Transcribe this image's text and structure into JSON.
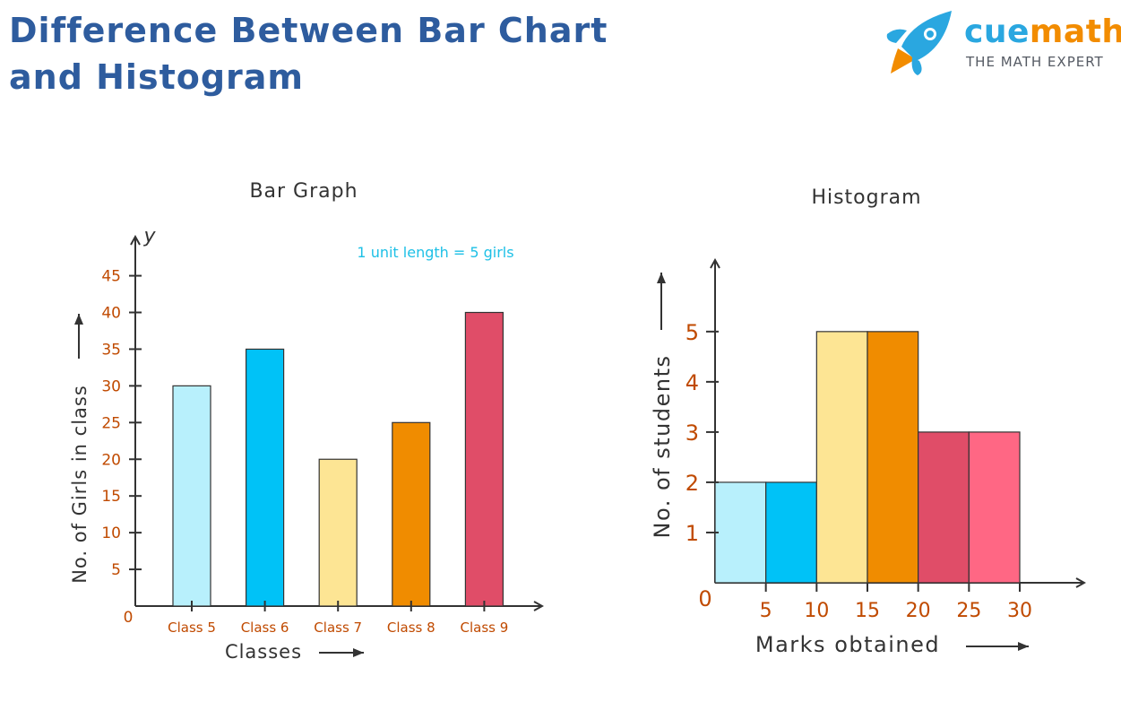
{
  "header": {
    "title_line1": "Difference Between Bar Chart",
    "title_line2": "and Histogram"
  },
  "brand": {
    "name_part1": "cue",
    "name_part2": "math",
    "tagline": "THE MATH EXPERT",
    "colors": {
      "primary": "#2aa7e0",
      "accent": "#f28c00"
    }
  },
  "colors": {
    "title": "#2e5c9e",
    "tick_label": "#c04a00",
    "axis_label": "#333333",
    "annotation": "#1ec0e6"
  },
  "chart_data": [
    {
      "type": "bar",
      "title": "Bar Graph",
      "y_axis_symbol": "y",
      "annotation": "1 unit length =  5 girls",
      "categories": [
        "Class 5",
        "Class 6",
        "Class 7",
        "Class 8",
        "Class 9"
      ],
      "values": [
        30,
        35,
        20,
        25,
        40
      ],
      "colors": [
        "#b8f0fc",
        "#00c2f7",
        "#fde594",
        "#f08c00",
        "#e04d68"
      ],
      "xlabel": "Classes",
      "ylabel": "No. of Girls in class",
      "origin_label": "0",
      "y_ticks": [
        5,
        10,
        15,
        20,
        25,
        30,
        35,
        40,
        45
      ],
      "ylim": [
        0,
        48
      ],
      "grid": false
    },
    {
      "type": "bar",
      "subtype": "histogram",
      "title": "Histogram",
      "bins": [
        [
          0,
          5
        ],
        [
          5,
          10
        ],
        [
          10,
          15
        ],
        [
          15,
          20
        ],
        [
          20,
          25
        ],
        [
          25,
          30
        ]
      ],
      "values": [
        2,
        2,
        5,
        5,
        3,
        3
      ],
      "colors": [
        "#b8f0fc",
        "#00c2f7",
        "#fde594",
        "#f08c00",
        "#e04d68",
        "#ff6784"
      ],
      "xlabel": "Marks obtained",
      "ylabel": "No. of students",
      "origin_label": "0",
      "x_ticks": [
        5,
        10,
        15,
        20,
        25,
        30
      ],
      "y_ticks": [
        1,
        2,
        3,
        4,
        5
      ],
      "xlim": [
        0,
        36
      ],
      "ylim": [
        0,
        6.3
      ],
      "grid": false
    }
  ]
}
